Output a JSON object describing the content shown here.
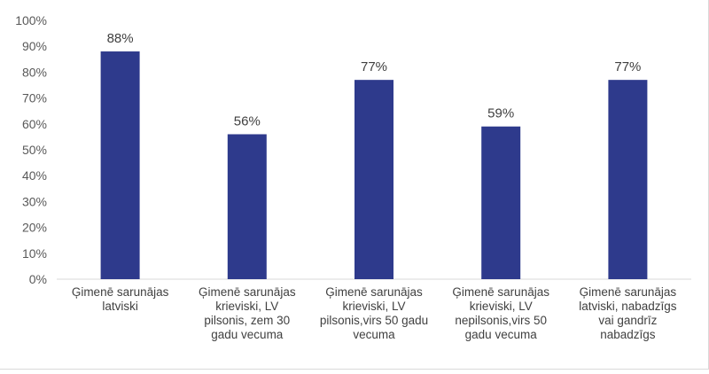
{
  "chart_data": {
    "type": "bar",
    "title": "",
    "xlabel": "",
    "ylabel": "",
    "ylim": [
      0,
      100
    ],
    "y_ticks": [
      "0%",
      "10%",
      "20%",
      "30%",
      "40%",
      "50%",
      "60%",
      "70%",
      "80%",
      "90%",
      "100%"
    ],
    "grid": false,
    "legend": "none",
    "bar_color": "#2e3a8c",
    "categories": [
      [
        "Ģimenē sarunājas",
        "latviski"
      ],
      [
        "Ģimenē sarunājas",
        "krieviski, LV",
        "pilsonis, zem 30",
        "gadu vecuma"
      ],
      [
        "Ģimenē sarunājas",
        "krieviski, LV",
        "pilsonis,virs 50 gadu",
        "vecuma"
      ],
      [
        "Ģimenē sarunājas",
        "krieviski, LV",
        "nepilsonis,virs 50",
        "gadu vecuma"
      ],
      [
        "Ģimenē sarunājas",
        "latviski, nabadzīgs",
        "vai gandrīz",
        "nabadzīgs"
      ]
    ],
    "values": [
      88,
      56,
      77,
      59,
      77
    ],
    "value_labels": [
      "88%",
      "56%",
      "77%",
      "59%",
      "77%"
    ]
  }
}
